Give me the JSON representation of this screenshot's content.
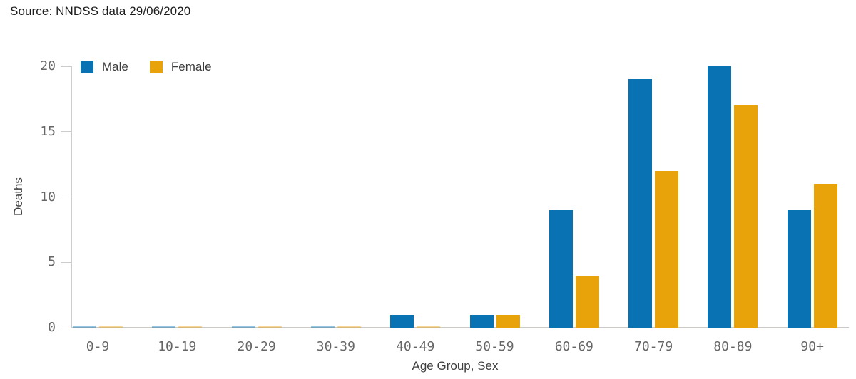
{
  "source_text": "Source: NNDSS data 29/06/2020",
  "colors": {
    "male": "#0872B2",
    "female": "#E8A30A",
    "axis_line": "#cccccc",
    "tick_label": "#666666",
    "axis_title": "#3f3f3f",
    "source_text": "#1c1c1c"
  },
  "chart_data": {
    "type": "bar",
    "title": "",
    "categories": [
      "0-9",
      "10-19",
      "20-29",
      "30-39",
      "40-49",
      "50-59",
      "60-69",
      "70-79",
      "80-89",
      "90+"
    ],
    "series": [
      {
        "name": "Male",
        "color": "#0872B2",
        "values": [
          0,
          0,
          0,
          0,
          1,
          1,
          9,
          19,
          20,
          9
        ]
      },
      {
        "name": "Female",
        "color": "#E8A30A",
        "values": [
          0,
          0,
          0,
          0,
          0,
          1,
          4,
          12,
          17,
          11
        ]
      }
    ],
    "xlabel": "Age Group, Sex",
    "ylabel": "Deaths",
    "ylim": [
      0,
      20
    ],
    "yticks": [
      0,
      5,
      10,
      15,
      20
    ],
    "grid": false,
    "legend_position": "top-left"
  }
}
